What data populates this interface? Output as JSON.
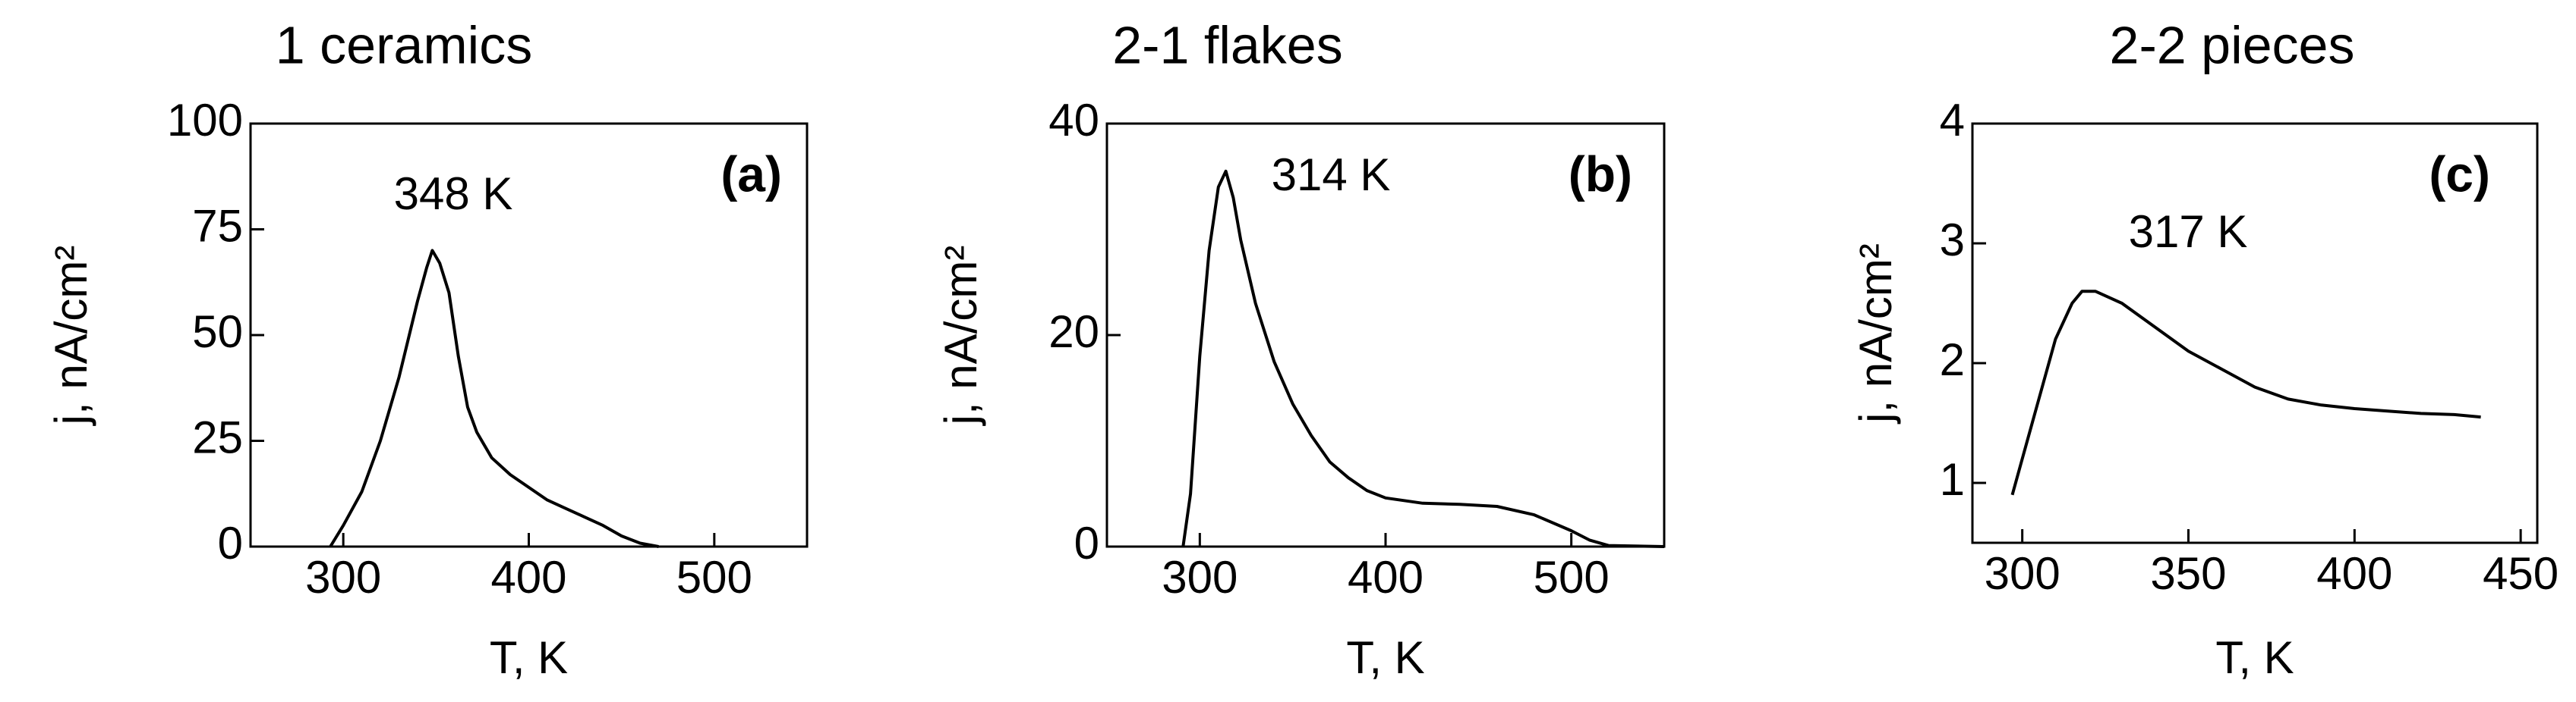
{
  "chart_data": [
    {
      "type": "line",
      "title": "1 ceramics",
      "xlabel": "T, K",
      "ylabel": "j, nA/cm²",
      "annotations": [
        "348 K",
        "(a)"
      ],
      "xlim": [
        250,
        550
      ],
      "xticks": [
        300,
        400,
        500
      ],
      "ylim": [
        0,
        100
      ],
      "yticks": [
        0,
        25,
        50,
        75,
        100
      ],
      "color": "#000000",
      "x": [
        293,
        300,
        310,
        320,
        330,
        340,
        345,
        348,
        352,
        357,
        362,
        367,
        372,
        380,
        390,
        400,
        410,
        420,
        430,
        440,
        450,
        460,
        470
      ],
      "values": [
        0,
        5,
        13,
        25,
        40,
        58,
        66,
        70,
        67,
        60,
        45,
        33,
        27,
        21,
        17,
        14,
        11,
        9,
        7,
        5,
        2.5,
        0.8,
        0
      ]
    },
    {
      "type": "line",
      "title": "2-1 flakes",
      "xlabel": "T, K",
      "ylabel": "j, nA/cm²",
      "annotations": [
        "314 K",
        "(b)"
      ],
      "xlim": [
        250,
        550
      ],
      "xticks": [
        300,
        400,
        500
      ],
      "ylim": [
        0,
        40
      ],
      "yticks": [
        0,
        20,
        40
      ],
      "color": "#000000",
      "x": [
        291,
        295,
        300,
        305,
        310,
        314,
        318,
        322,
        330,
        340,
        350,
        360,
        370,
        380,
        390,
        400,
        420,
        440,
        460,
        480,
        500,
        510,
        520,
        550
      ],
      "values": [
        0,
        5,
        18,
        28,
        34,
        35.5,
        33,
        29,
        23,
        17.5,
        13.5,
        10.5,
        8,
        6.5,
        5.3,
        4.6,
        4.1,
        4.0,
        3.8,
        3.0,
        1.5,
        0.6,
        0.1,
        0
      ]
    },
    {
      "type": "line",
      "title": "2-2 pieces",
      "xlabel": "T, K",
      "ylabel": "j, nA/cm²",
      "annotations": [
        "317 K",
        "(c)"
      ],
      "xlim": [
        285,
        455
      ],
      "xticks": [
        300,
        350,
        400,
        450
      ],
      "ylim": [
        0.5,
        4
      ],
      "yticks": [
        1,
        2,
        3,
        4
      ],
      "color": "#000000",
      "x": [
        297,
        300,
        305,
        310,
        315,
        318,
        322,
        330,
        340,
        350,
        360,
        370,
        380,
        390,
        400,
        410,
        420,
        430,
        438
      ],
      "values": [
        0.9,
        1.2,
        1.7,
        2.2,
        2.5,
        2.6,
        2.6,
        2.5,
        2.3,
        2.1,
        1.95,
        1.8,
        1.7,
        1.65,
        1.62,
        1.6,
        1.58,
        1.57,
        1.55
      ]
    }
  ]
}
